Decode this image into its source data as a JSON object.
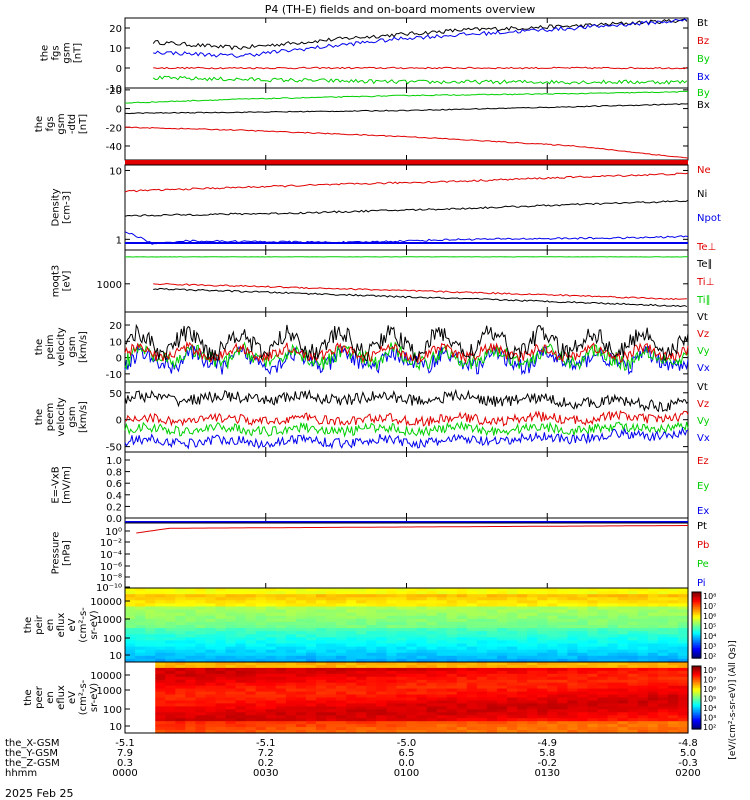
{
  "title": "P4 (TH-E) fields and on-board moments overview",
  "footer_date": "2025 Feb 25",
  "colors": {
    "black": "#000000",
    "red": "#e00000",
    "green": "#00d000",
    "blue": "#0000ee"
  },
  "chart_data": [
    {
      "type": "line",
      "panel": "fgs_gsm",
      "ylabel_lines": [
        "the",
        "fgs",
        "gsm",
        "[nT]"
      ],
      "yticks": [
        -10,
        0,
        10,
        20
      ],
      "ylim": [
        -10,
        25
      ],
      "legend": [
        {
          "name": "Bt",
          "color": "#000000"
        },
        {
          "name": "Bz",
          "color": "#e00000"
        },
        {
          "name": "By",
          "color": "#00d000"
        },
        {
          "name": "Bx",
          "color": "#0000ee"
        }
      ],
      "series": [
        {
          "name": "Bt",
          "color": "#000000",
          "x": [
            0.05,
            0.2,
            0.4,
            0.6,
            0.8,
            1.0
          ],
          "y": [
            13,
            10,
            15,
            19,
            21,
            24
          ]
        },
        {
          "name": "Bz",
          "color": "#e00000",
          "x": [
            0.05,
            1.0
          ],
          "y": [
            0,
            0
          ]
        },
        {
          "name": "By",
          "color": "#00d000",
          "x": [
            0.05,
            0.5,
            1.0
          ],
          "y": [
            -5,
            -7,
            -7
          ]
        },
        {
          "name": "Bx",
          "color": "#0000ee",
          "x": [
            0.05,
            0.2,
            0.5,
            0.8,
            1.0
          ],
          "y": [
            8,
            6,
            15,
            20,
            24
          ]
        }
      ]
    },
    {
      "type": "line",
      "panel": "fgs_gsm_detrended",
      "ylabel_lines": [
        "the",
        "fgs",
        "gsm",
        "-dtd",
        "[nT]"
      ],
      "yticks": [
        -40,
        -20,
        0,
        20
      ],
      "ylim": [
        -55,
        22
      ],
      "legend": [
        {
          "name": "By",
          "color": "#00d000"
        },
        {
          "name": "Bx",
          "color": "#000000"
        }
      ],
      "series": [
        {
          "name": "By",
          "color": "#00d000",
          "x": [
            0,
            0.2,
            0.5,
            0.8,
            1.0
          ],
          "y": [
            6,
            10,
            14,
            16,
            18
          ]
        },
        {
          "name": "Bx",
          "color": "#000000",
          "x": [
            0,
            0.2,
            0.5,
            0.8,
            1.0
          ],
          "y": [
            -5,
            -4,
            -2,
            2,
            5
          ]
        },
        {
          "name": "Bz",
          "color": "#e00000",
          "x": [
            0,
            0.2,
            0.5,
            0.8,
            1.0
          ],
          "y": [
            -20,
            -23,
            -30,
            -40,
            -53
          ]
        }
      ]
    },
    {
      "type": "line",
      "panel": "density",
      "ylabel_lines": [
        "Density",
        "[cm-3]"
      ],
      "yticks": [
        "1",
        "10"
      ],
      "log": true,
      "ylim": [
        0.7,
        12
      ],
      "legend": [
        {
          "name": "Ne",
          "color": "#e00000"
        },
        {
          "name": "Ni",
          "color": "#000000"
        },
        {
          "name": "Npot",
          "color": "#0000ee"
        }
      ],
      "series": [
        {
          "name": "Ne",
          "color": "#e00000",
          "x": [
            0,
            0.3,
            0.6,
            1.0
          ],
          "y": [
            5.0,
            6.0,
            7.0,
            9.0
          ]
        },
        {
          "name": "Ni",
          "color": "#000000",
          "x": [
            0,
            0.3,
            0.6,
            1.0
          ],
          "y": [
            2.2,
            2.4,
            2.8,
            3.6
          ]
        },
        {
          "name": "Npot",
          "color": "#0000ee",
          "x": [
            0,
            0.05,
            0.1,
            0.4,
            0.6,
            0.9,
            1.0
          ],
          "y": [
            1.3,
            0.85,
            0.95,
            0.9,
            1.0,
            1.05,
            1.1
          ]
        }
      ]
    },
    {
      "type": "line",
      "panel": "temperature",
      "ylabel_lines": [
        "moqt3",
        "[eV]"
      ],
      "yticks": [
        "1000"
      ],
      "log": true,
      "ylim": [
        400,
        3000
      ],
      "legend": [
        {
          "name": "Te⊥",
          "color": "#e00000"
        },
        {
          "name": "Te∥",
          "color": "#000000"
        },
        {
          "name": "Ti⊥",
          "color": "#e00000"
        },
        {
          "name": "Ti∥",
          "color": "#00d000"
        }
      ],
      "series": [
        {
          "name": "Ti⊥",
          "color": "#e00000",
          "x": [
            0.05,
            0.5,
            1.0
          ],
          "y": [
            1000,
            800,
            600
          ]
        },
        {
          "name": "Ti∥",
          "color": "#000000",
          "x": [
            0.05,
            0.5,
            1.0
          ],
          "y": [
            850,
            650,
            480
          ]
        },
        {
          "name": "Te",
          "color": "#00d000",
          "x": [
            0,
            1.0
          ],
          "y": [
            2400,
            2400
          ]
        }
      ]
    },
    {
      "type": "line",
      "panel": "peim_velocity",
      "ylabel_lines": [
        "the",
        "peim",
        "velocity",
        "gsm",
        "[km/s]"
      ],
      "yticks": [
        -10,
        0,
        10,
        20
      ],
      "ylim": [
        -15,
        28
      ],
      "legend": [
        {
          "name": "Vt",
          "color": "#000000"
        },
        {
          "name": "Vz",
          "color": "#e00000"
        },
        {
          "name": "Vy",
          "color": "#00d000"
        },
        {
          "name": "Vx",
          "color": "#0000ee"
        }
      ]
    },
    {
      "type": "line",
      "panel": "peem_velocity",
      "ylabel_lines": [
        "the",
        "peem",
        "velocity",
        "gsm",
        "[km/s]"
      ],
      "yticks": [
        -50,
        0,
        50
      ],
      "ylim": [
        -60,
        70
      ],
      "legend": [
        {
          "name": "Vt",
          "color": "#000000"
        },
        {
          "name": "Vz",
          "color": "#e00000"
        },
        {
          "name": "Vy",
          "color": "#00d000"
        },
        {
          "name": "Vx",
          "color": "#0000ee"
        }
      ]
    },
    {
      "type": "line",
      "panel": "efield",
      "ylabel_lines": [
        "E=-VxB",
        "[mV/m]"
      ],
      "yticks": [
        "0.0",
        "0.2",
        "0.4",
        "0.6",
        "0.8",
        "1.0"
      ],
      "ylim": [
        0,
        1
      ],
      "legend": [
        {
          "name": "Ez",
          "color": "#e00000"
        },
        {
          "name": "Ey",
          "color": "#00d000"
        },
        {
          "name": "Ex",
          "color": "#0000ee"
        }
      ]
    },
    {
      "type": "line",
      "panel": "pressure",
      "ylabel_lines": [
        "Pressure",
        "[nPa]"
      ],
      "yticks": [
        "10⁰",
        "10⁻²",
        "10⁻⁴",
        "10⁻⁶",
        "10⁻⁸",
        "10⁻¹⁰"
      ],
      "log": true,
      "legend": [
        {
          "name": "Pt",
          "color": "#000000"
        },
        {
          "name": "Pb",
          "color": "#e00000"
        },
        {
          "name": "Pe",
          "color": "#00d000"
        },
        {
          "name": "Pi",
          "color": "#0000ee"
        }
      ]
    },
    {
      "type": "heatmap",
      "panel": "peir_spectrogram",
      "ylabel_lines": [
        "the",
        "peir",
        "en",
        "eflux",
        "eV",
        "(cm²-s-",
        "sr-eV)"
      ],
      "yticks": [
        "10",
        "100",
        "1000",
        "10000"
      ],
      "colorbar_ticks": [
        "10⁸",
        "10⁷",
        "10⁶",
        "10⁵",
        "10⁴",
        "10³",
        "10²"
      ]
    },
    {
      "type": "heatmap",
      "panel": "peer_spectrogram",
      "ylabel_lines": [
        "the",
        "peer",
        "en",
        "eflux",
        "eV",
        "(cm²-s-",
        "sr-eV)"
      ],
      "yticks": [
        "10",
        "100",
        "1000",
        "10000"
      ],
      "colorbar_ticks": [
        "10⁸",
        "10⁷",
        "10⁶",
        "10⁵",
        "10⁴",
        "10³",
        "10²"
      ],
      "colorbar_label": "[eV/(cm²-s-sr-eV)] (All Qs)]"
    }
  ],
  "xaxis": {
    "rows": [
      {
        "label": "the_X-GSM",
        "values": [
          "-5.1",
          "-5.1",
          "-5.0",
          "-4.9",
          "-4.8"
        ]
      },
      {
        "label": "the_Y-GSM",
        "values": [
          "7.9",
          "7.2",
          "6.5",
          "5.8",
          "5.0"
        ]
      },
      {
        "label": "the_Z-GSM",
        "values": [
          "0.3",
          "0.2",
          "0.0",
          "-0.2",
          "-0.3"
        ]
      },
      {
        "label": "hhmm",
        "values": [
          "0000",
          "0030",
          "0100",
          "0130",
          "0200"
        ]
      }
    ]
  }
}
